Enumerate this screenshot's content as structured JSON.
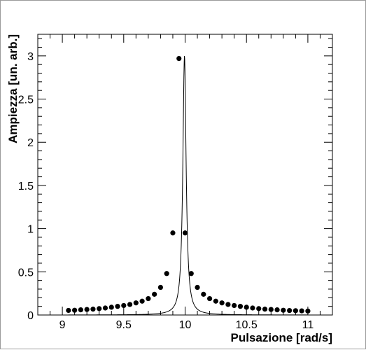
{
  "chart_data": {
    "type": "scatter",
    "title": "",
    "xlabel": "Pulsazione [rad/s]",
    "ylabel": "Ampiezza [un. arb.]",
    "xlim": [
      8.8,
      11.2
    ],
    "ylim": [
      0,
      3.25
    ],
    "grid": false,
    "legend": "none",
    "x_ticks": [
      "9",
      "9.5",
      "10",
      "10.5",
      "11"
    ],
    "y_ticks": [
      "0",
      "0.5",
      "1",
      "1.5",
      "2",
      "2.5",
      "3"
    ],
    "marker_color": "#000000",
    "curve_color": "#000000",
    "series": [
      {
        "x": [
          9.05,
          9.1,
          9.15,
          9.2,
          9.25,
          9.3,
          9.35,
          9.4,
          9.45,
          9.5,
          9.55,
          9.6,
          9.65,
          9.7,
          9.75,
          9.8,
          9.85,
          9.9,
          9.95,
          10.0,
          10.05,
          10.1,
          10.15,
          10.2,
          10.25,
          10.3,
          10.35,
          10.4,
          10.45,
          10.5,
          10.55,
          10.6,
          10.65,
          10.7,
          10.75,
          10.8,
          10.85,
          10.9,
          10.95,
          11.0
        ],
        "values": [
          0.053,
          0.055,
          0.06,
          0.064,
          0.068,
          0.074,
          0.081,
          0.09,
          0.1,
          0.11,
          0.122,
          0.14,
          0.16,
          0.19,
          0.24,
          0.32,
          0.48,
          0.95,
          2.97,
          0.95,
          0.48,
          0.32,
          0.24,
          0.19,
          0.16,
          0.14,
          0.122,
          0.11,
          0.1,
          0.09,
          0.081,
          0.074,
          0.068,
          0.064,
          0.06,
          0.055,
          0.052,
          0.05,
          0.048,
          0.046
        ]
      }
    ],
    "fit_curve": {
      "center": 9.995,
      "half_width": 0.016,
      "peak": 3.0,
      "background": 0.0
    }
  }
}
